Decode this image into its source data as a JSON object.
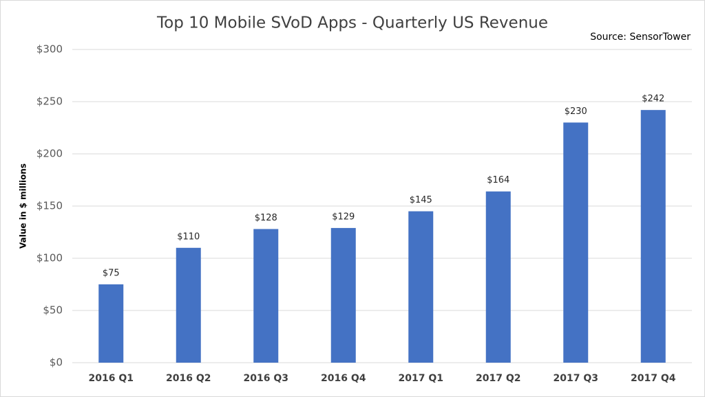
{
  "chart_data": {
    "type": "bar",
    "title": "Top 10 Mobile SVoD Apps - Quarterly US Revenue",
    "source": "Source: SensorTower",
    "y_label": "Value in $ millions",
    "categories": [
      "2016 Q1",
      "2016 Q2",
      "2016 Q3",
      "2016 Q4",
      "2017 Q1",
      "2017 Q2",
      "2017 Q3",
      "2017 Q4"
    ],
    "values": [
      75,
      110,
      128,
      129,
      145,
      164,
      230,
      242
    ],
    "value_labels": [
      "$75",
      "$110",
      "$128",
      "$129",
      "$145",
      "$164",
      "$230",
      "$242"
    ],
    "color": "#4472c4",
    "ylim": [
      0,
      300
    ],
    "yticks": [
      {
        "value": 0,
        "label": "$0"
      },
      {
        "value": 50,
        "label": "$50"
      },
      {
        "value": 100,
        "label": "$100"
      },
      {
        "value": 150,
        "label": "$150"
      },
      {
        "value": 200,
        "label": "$200"
      },
      {
        "value": 250,
        "label": "$250"
      },
      {
        "value": 300,
        "label": "$300"
      }
    ],
    "grid": true
  }
}
